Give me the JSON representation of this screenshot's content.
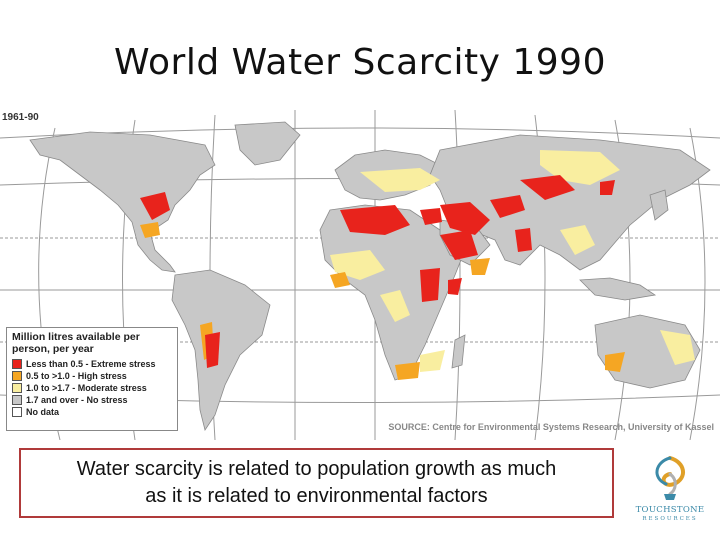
{
  "slide": {
    "title": "World Water Scarcity 1990",
    "caption_line1": "Water scarcity is related to population growth as much",
    "caption_line2": "as it is related to environmental factors"
  },
  "map": {
    "period": "1961-90",
    "source": "SOURCE: Centre for Environmental Systems Research, University of Kassel",
    "legend": {
      "title_line1": "Million litres available per",
      "title_line2": "person, per year",
      "items": [
        {
          "label": "Less than 0.5 - Extreme stress",
          "color": "#e8231c"
        },
        {
          "label": "0.5 to >1.0 - High stress",
          "color": "#f5a623"
        },
        {
          "label": "1.0 to >1.7 - Moderate stress",
          "color": "#f9eea0"
        },
        {
          "label": "1.7 and over - No stress",
          "color": "#c8c8c8"
        },
        {
          "label": "No data",
          "color": "#ffffff"
        }
      ]
    }
  },
  "logo": {
    "name": "TOUCHSTONE",
    "sub": "RESOURCES"
  }
}
